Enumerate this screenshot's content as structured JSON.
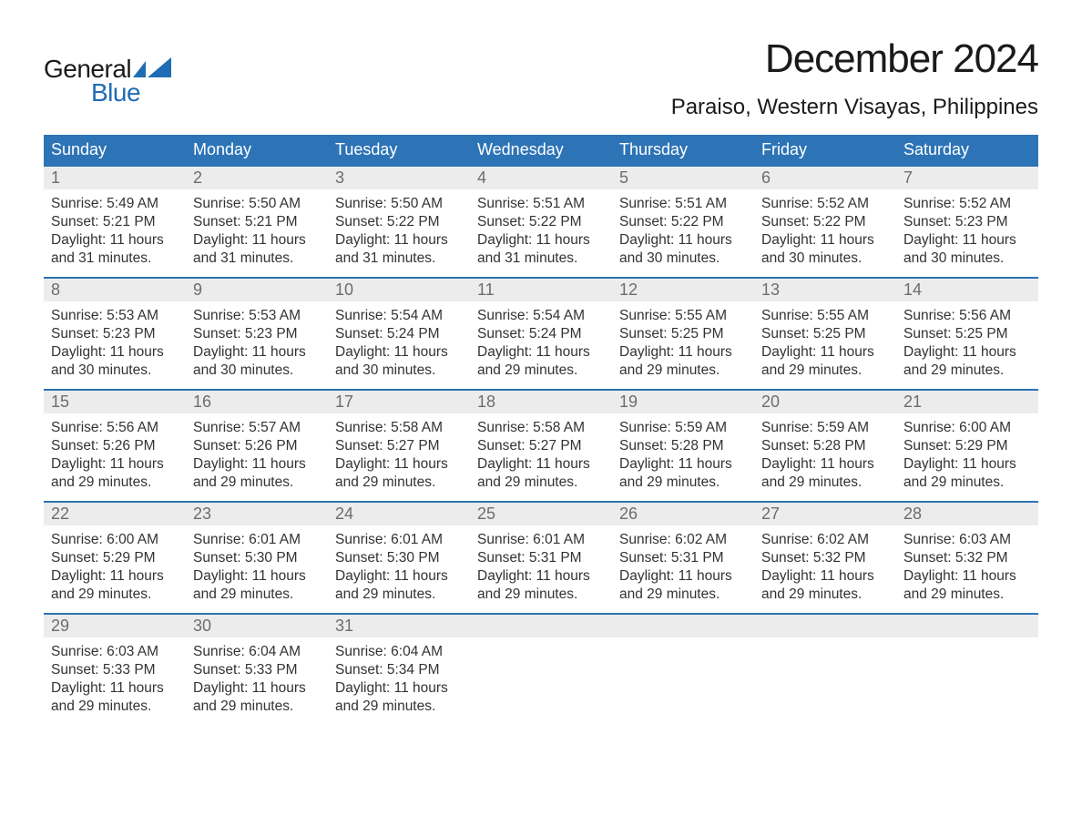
{
  "logo": {
    "general": "General",
    "blue": "Blue",
    "wing_color": "#1f6db5"
  },
  "title": "December 2024",
  "location": "Paraiso, Western Visayas, Philippines",
  "colors": {
    "header_bg": "#2d74b6",
    "header_text": "#ffffff",
    "daynum_bg": "#ececec",
    "daynum_text": "#6d6d6d",
    "body_text": "#333333",
    "week_border": "#2d74b6",
    "page_bg": "#ffffff",
    "logo_blue": "#1f6db5"
  },
  "typography": {
    "title_fontsize": 44,
    "location_fontsize": 24,
    "weekday_fontsize": 18,
    "daynum_fontsize": 18,
    "cell_fontsize": 15.5
  },
  "weekdays": [
    "Sunday",
    "Monday",
    "Tuesday",
    "Wednesday",
    "Thursday",
    "Friday",
    "Saturday"
  ],
  "weeks": [
    [
      {
        "num": "1",
        "sunrise": "Sunrise: 5:49 AM",
        "sunset": "Sunset: 5:21 PM",
        "day1": "Daylight: 11 hours",
        "day2": "and 31 minutes."
      },
      {
        "num": "2",
        "sunrise": "Sunrise: 5:50 AM",
        "sunset": "Sunset: 5:21 PM",
        "day1": "Daylight: 11 hours",
        "day2": "and 31 minutes."
      },
      {
        "num": "3",
        "sunrise": "Sunrise: 5:50 AM",
        "sunset": "Sunset: 5:22 PM",
        "day1": "Daylight: 11 hours",
        "day2": "and 31 minutes."
      },
      {
        "num": "4",
        "sunrise": "Sunrise: 5:51 AM",
        "sunset": "Sunset: 5:22 PM",
        "day1": "Daylight: 11 hours",
        "day2": "and 31 minutes."
      },
      {
        "num": "5",
        "sunrise": "Sunrise: 5:51 AM",
        "sunset": "Sunset: 5:22 PM",
        "day1": "Daylight: 11 hours",
        "day2": "and 30 minutes."
      },
      {
        "num": "6",
        "sunrise": "Sunrise: 5:52 AM",
        "sunset": "Sunset: 5:22 PM",
        "day1": "Daylight: 11 hours",
        "day2": "and 30 minutes."
      },
      {
        "num": "7",
        "sunrise": "Sunrise: 5:52 AM",
        "sunset": "Sunset: 5:23 PM",
        "day1": "Daylight: 11 hours",
        "day2": "and 30 minutes."
      }
    ],
    [
      {
        "num": "8",
        "sunrise": "Sunrise: 5:53 AM",
        "sunset": "Sunset: 5:23 PM",
        "day1": "Daylight: 11 hours",
        "day2": "and 30 minutes."
      },
      {
        "num": "9",
        "sunrise": "Sunrise: 5:53 AM",
        "sunset": "Sunset: 5:23 PM",
        "day1": "Daylight: 11 hours",
        "day2": "and 30 minutes."
      },
      {
        "num": "10",
        "sunrise": "Sunrise: 5:54 AM",
        "sunset": "Sunset: 5:24 PM",
        "day1": "Daylight: 11 hours",
        "day2": "and 30 minutes."
      },
      {
        "num": "11",
        "sunrise": "Sunrise: 5:54 AM",
        "sunset": "Sunset: 5:24 PM",
        "day1": "Daylight: 11 hours",
        "day2": "and 29 minutes."
      },
      {
        "num": "12",
        "sunrise": "Sunrise: 5:55 AM",
        "sunset": "Sunset: 5:25 PM",
        "day1": "Daylight: 11 hours",
        "day2": "and 29 minutes."
      },
      {
        "num": "13",
        "sunrise": "Sunrise: 5:55 AM",
        "sunset": "Sunset: 5:25 PM",
        "day1": "Daylight: 11 hours",
        "day2": "and 29 minutes."
      },
      {
        "num": "14",
        "sunrise": "Sunrise: 5:56 AM",
        "sunset": "Sunset: 5:25 PM",
        "day1": "Daylight: 11 hours",
        "day2": "and 29 minutes."
      }
    ],
    [
      {
        "num": "15",
        "sunrise": "Sunrise: 5:56 AM",
        "sunset": "Sunset: 5:26 PM",
        "day1": "Daylight: 11 hours",
        "day2": "and 29 minutes."
      },
      {
        "num": "16",
        "sunrise": "Sunrise: 5:57 AM",
        "sunset": "Sunset: 5:26 PM",
        "day1": "Daylight: 11 hours",
        "day2": "and 29 minutes."
      },
      {
        "num": "17",
        "sunrise": "Sunrise: 5:58 AM",
        "sunset": "Sunset: 5:27 PM",
        "day1": "Daylight: 11 hours",
        "day2": "and 29 minutes."
      },
      {
        "num": "18",
        "sunrise": "Sunrise: 5:58 AM",
        "sunset": "Sunset: 5:27 PM",
        "day1": "Daylight: 11 hours",
        "day2": "and 29 minutes."
      },
      {
        "num": "19",
        "sunrise": "Sunrise: 5:59 AM",
        "sunset": "Sunset: 5:28 PM",
        "day1": "Daylight: 11 hours",
        "day2": "and 29 minutes."
      },
      {
        "num": "20",
        "sunrise": "Sunrise: 5:59 AM",
        "sunset": "Sunset: 5:28 PM",
        "day1": "Daylight: 11 hours",
        "day2": "and 29 minutes."
      },
      {
        "num": "21",
        "sunrise": "Sunrise: 6:00 AM",
        "sunset": "Sunset: 5:29 PM",
        "day1": "Daylight: 11 hours",
        "day2": "and 29 minutes."
      }
    ],
    [
      {
        "num": "22",
        "sunrise": "Sunrise: 6:00 AM",
        "sunset": "Sunset: 5:29 PM",
        "day1": "Daylight: 11 hours",
        "day2": "and 29 minutes."
      },
      {
        "num": "23",
        "sunrise": "Sunrise: 6:01 AM",
        "sunset": "Sunset: 5:30 PM",
        "day1": "Daylight: 11 hours",
        "day2": "and 29 minutes."
      },
      {
        "num": "24",
        "sunrise": "Sunrise: 6:01 AM",
        "sunset": "Sunset: 5:30 PM",
        "day1": "Daylight: 11 hours",
        "day2": "and 29 minutes."
      },
      {
        "num": "25",
        "sunrise": "Sunrise: 6:01 AM",
        "sunset": "Sunset: 5:31 PM",
        "day1": "Daylight: 11 hours",
        "day2": "and 29 minutes."
      },
      {
        "num": "26",
        "sunrise": "Sunrise: 6:02 AM",
        "sunset": "Sunset: 5:31 PM",
        "day1": "Daylight: 11 hours",
        "day2": "and 29 minutes."
      },
      {
        "num": "27",
        "sunrise": "Sunrise: 6:02 AM",
        "sunset": "Sunset: 5:32 PM",
        "day1": "Daylight: 11 hours",
        "day2": "and 29 minutes."
      },
      {
        "num": "28",
        "sunrise": "Sunrise: 6:03 AM",
        "sunset": "Sunset: 5:32 PM",
        "day1": "Daylight: 11 hours",
        "day2": "and 29 minutes."
      }
    ],
    [
      {
        "num": "29",
        "sunrise": "Sunrise: 6:03 AM",
        "sunset": "Sunset: 5:33 PM",
        "day1": "Daylight: 11 hours",
        "day2": "and 29 minutes."
      },
      {
        "num": "30",
        "sunrise": "Sunrise: 6:04 AM",
        "sunset": "Sunset: 5:33 PM",
        "day1": "Daylight: 11 hours",
        "day2": "and 29 minutes."
      },
      {
        "num": "31",
        "sunrise": "Sunrise: 6:04 AM",
        "sunset": "Sunset: 5:34 PM",
        "day1": "Daylight: 11 hours",
        "day2": "and 29 minutes."
      },
      {
        "num": "",
        "sunrise": "",
        "sunset": "",
        "day1": "",
        "day2": ""
      },
      {
        "num": "",
        "sunrise": "",
        "sunset": "",
        "day1": "",
        "day2": ""
      },
      {
        "num": "",
        "sunrise": "",
        "sunset": "",
        "day1": "",
        "day2": ""
      },
      {
        "num": "",
        "sunrise": "",
        "sunset": "",
        "day1": "",
        "day2": ""
      }
    ]
  ]
}
